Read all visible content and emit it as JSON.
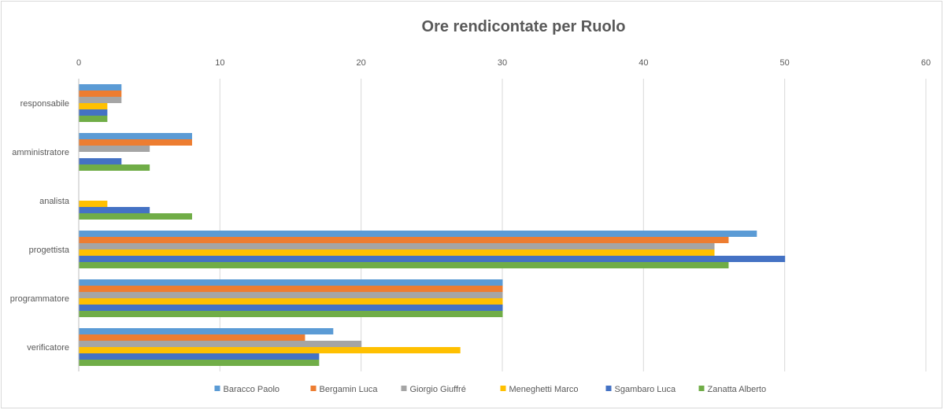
{
  "chart_data": {
    "type": "bar",
    "orientation": "horizontal",
    "title": "Ore rendicontate per Ruolo",
    "xlabel": "",
    "ylabel": "",
    "xlim": [
      0,
      60
    ],
    "x_ticks": [
      0,
      10,
      20,
      30,
      40,
      50,
      60
    ],
    "x_axis_position": "top",
    "grid": true,
    "legend_position": "bottom",
    "categories": [
      "responsabile",
      "amministratore",
      "analista",
      "progettista",
      "programmatore",
      "verificatore"
    ],
    "series": [
      {
        "name": "Baracco Paolo",
        "color": "#5b9bd5",
        "values": [
          3,
          8,
          0,
          48,
          30,
          18
        ]
      },
      {
        "name": "Bergamin Luca",
        "color": "#ed7d31",
        "values": [
          3,
          8,
          0,
          46,
          30,
          16
        ]
      },
      {
        "name": "Giorgio Giuffré",
        "color": "#a5a5a5",
        "values": [
          3,
          5,
          0,
          45,
          30,
          20
        ]
      },
      {
        "name": "Meneghetti Marco",
        "color": "#ffc000",
        "values": [
          2,
          0,
          2,
          45,
          30,
          27
        ]
      },
      {
        "name": "Sgambaro Luca",
        "color": "#4472c4",
        "values": [
          2,
          3,
          5,
          50,
          30,
          17
        ]
      },
      {
        "name": "Zanatta Alberto",
        "color": "#70ad47",
        "values": [
          2,
          5,
          8,
          46,
          30,
          17
        ]
      }
    ]
  }
}
